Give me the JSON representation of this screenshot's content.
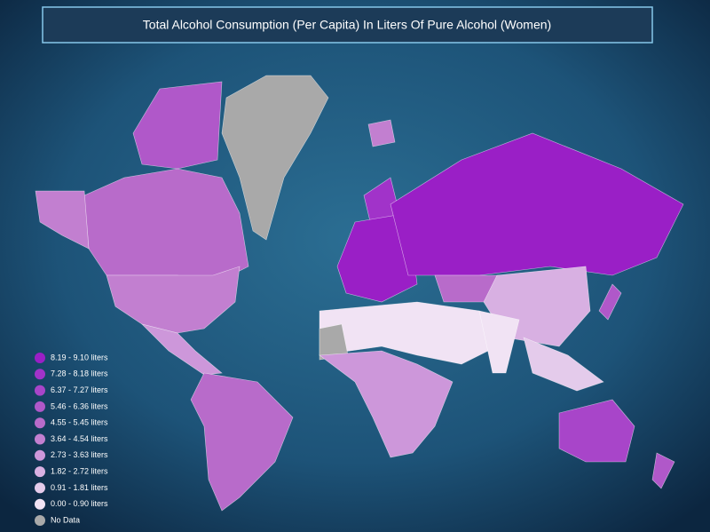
{
  "title": "Total Alcohol Consumption (Per Capita) In Liters Of Pure Alcohol (Women)",
  "legend": [
    {
      "label": "8.19 - 9.10 liters",
      "color": "#9a1fc6"
    },
    {
      "label": "7.28 - 8.18 liters",
      "color": "#a133c9"
    },
    {
      "label": "6.37 - 7.27 liters",
      "color": "#a845c9"
    },
    {
      "label": "5.46 - 6.36 liters",
      "color": "#b058c9"
    },
    {
      "label": "4.55 - 5.45 liters",
      "color": "#b86bca"
    },
    {
      "label": "3.64 - 4.54 liters",
      "color": "#c27fd0"
    },
    {
      "label": "2.73 - 3.63 liters",
      "color": "#cd97da"
    },
    {
      "label": "1.82 - 2.72 liters",
      "color": "#d8b0e2"
    },
    {
      "label": "0.91 - 1.81 liters",
      "color": "#e4cbeb"
    },
    {
      "label": "0.00 - 0.90 liters",
      "color": "#f1e3f4"
    },
    {
      "label": "No Data",
      "color": "#a9a9a9"
    }
  ]
}
